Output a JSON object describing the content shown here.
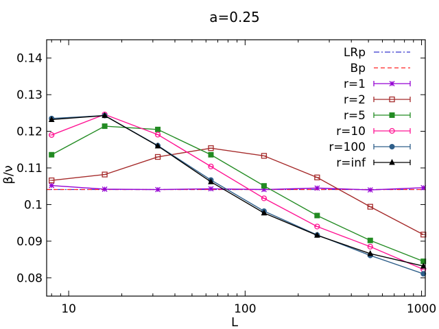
{
  "chart_data": {
    "type": "line",
    "title": "a=0.25",
    "xlabel": "L",
    "ylabel": "β/ν",
    "xscale": "log",
    "xlim": [
      7.5,
      1050
    ],
    "ylim": [
      0.075,
      0.145
    ],
    "x_ticks": [
      10,
      100,
      1000
    ],
    "x_tick_labels": [
      "10",
      "100",
      "1000"
    ],
    "y_ticks": [
      0.08,
      0.09,
      0.1,
      0.11,
      0.12,
      0.13,
      0.14
    ],
    "y_tick_labels": [
      "0.08",
      "0.09",
      "0.1",
      "0.11",
      "0.12",
      "0.13",
      "0.14"
    ],
    "legend_position": "top-right",
    "reference_lines": [
      {
        "name": "LRp",
        "y": 0.1041,
        "color": "#3333cc",
        "style": "dash-dot"
      },
      {
        "name": "Bp",
        "y": 0.1041,
        "color": "#ff2222",
        "style": "dashed"
      }
    ],
    "x": [
      8,
      16,
      32,
      64,
      128,
      256,
      512,
      1024
    ],
    "series": [
      {
        "name": "r=1",
        "color": "#9400d3",
        "marker": "star",
        "values": [
          0.1052,
          0.1042,
          0.1041,
          0.1043,
          0.1041,
          0.1045,
          0.104,
          0.1046
        ]
      },
      {
        "name": "r=2",
        "color": "#a52a2a",
        "marker": "open-square",
        "values": [
          0.1066,
          0.1082,
          0.113,
          0.1154,
          0.1133,
          0.1074,
          0.0994,
          0.0918
        ]
      },
      {
        "name": "r=5",
        "color": "#228b22",
        "marker": "filled-square",
        "values": [
          0.1136,
          0.1214,
          0.1205,
          0.1136,
          0.1051,
          0.097,
          0.0902,
          0.0845
        ]
      },
      {
        "name": "r=10",
        "color": "#ff1493",
        "marker": "open-circle",
        "values": [
          0.119,
          0.1246,
          0.1191,
          0.1104,
          0.1017,
          0.094,
          0.0885,
          0.0823
        ]
      },
      {
        "name": "r=100",
        "color": "#2f5f8a",
        "marker": "filled-circle",
        "values": [
          0.1235,
          0.1243,
          0.1161,
          0.1067,
          0.0982,
          0.0917,
          0.0861,
          0.0811
        ]
      },
      {
        "name": "r=inf",
        "color": "#000000",
        "marker": "filled-triangle",
        "values": [
          0.1232,
          0.1243,
          0.116,
          0.1062,
          0.0977,
          0.0916,
          0.0866,
          0.0832
        ]
      }
    ]
  }
}
